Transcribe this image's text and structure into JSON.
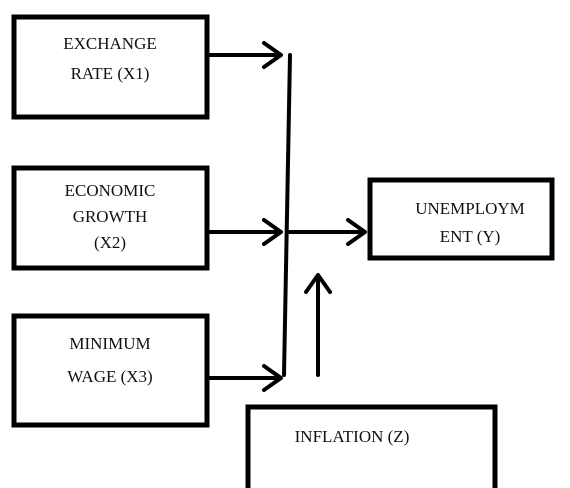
{
  "nodes": [
    {
      "lines": [
        "EXCHANGE",
        "RATE (X1)"
      ]
    },
    {
      "lines": [
        "ECONOMIC",
        "GROWTH",
        "(X2)"
      ]
    },
    {
      "lines": [
        "MINIMUM",
        "WAGE (X3)"
      ]
    },
    {
      "lines": [
        "UNEMPLOYM",
        "ENT (Y)"
      ]
    },
    {
      "lines": [
        "INFLATION (Z)"
      ]
    }
  ]
}
